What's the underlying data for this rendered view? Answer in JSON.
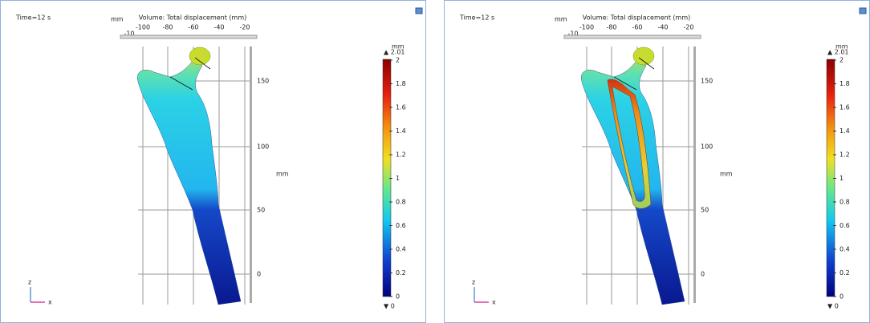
{
  "panels": [
    {
      "time": "Time=12 s",
      "title": "Volume: Total displacement (mm)",
      "x_unit": "mm",
      "x_extra": "-10",
      "x_ticks": [
        "-100",
        "-80",
        "-60",
        "-40",
        "-20"
      ],
      "z_unit": "mm",
      "z_ticks": [
        "150",
        "100",
        "50",
        "0"
      ],
      "colorbar": {
        "unit": "mm",
        "max": "▲ 2.01",
        "min": "▼ 0",
        "ticks": [
          "2",
          "1.8",
          "1.6",
          "1.4",
          "1.2",
          "1",
          "0.8",
          "0.6",
          "0.4",
          "0.2",
          "0"
        ]
      },
      "triad": {
        "z": "z",
        "x": "x"
      }
    },
    {
      "time": "Time=12 s",
      "title": "Volume: Total displacement (mm)",
      "x_unit": "mm",
      "x_extra": "-10",
      "x_ticks": [
        "-100",
        "-80",
        "-60",
        "-40",
        "-20"
      ],
      "z_unit": "mm",
      "z_ticks": [
        "150",
        "100",
        "50",
        "0"
      ],
      "colorbar": {
        "unit": "mm",
        "max": "▲ 2.01",
        "min": "▼ 0",
        "ticks": [
          "2",
          "1.8",
          "1.6",
          "1.4",
          "1.2",
          "1",
          "0.8",
          "0.6",
          "0.4",
          "0.2",
          "0"
        ]
      },
      "triad": {
        "z": "z",
        "x": "x"
      }
    }
  ]
}
